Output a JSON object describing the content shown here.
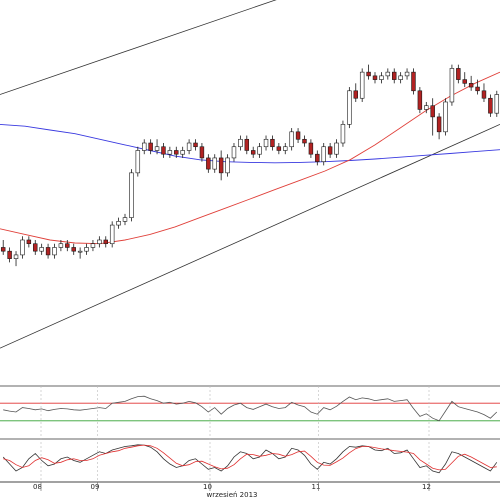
{
  "chart_data": {
    "type": "candlestick",
    "x_axis": {
      "title": "wrzesień 2013",
      "day_labels": [
        "08",
        "09",
        "10",
        "11",
        "12"
      ]
    },
    "colors": {
      "up": "#ffffff",
      "down": "#b22222",
      "wick": "#1a1a1a",
      "ma_fast": "#e0403a",
      "ma_slow": "#3a3ae0",
      "channel": "#333333",
      "rsi_line": "#555555",
      "rsi_upper": "#e03030",
      "rsi_lower": "#30a030",
      "stoch_k": "#333333",
      "stoch_d": "#e03030"
    },
    "price": {
      "ylim": [
        0,
        100
      ],
      "candles": [
        [
          35,
          37,
          33,
          34
        ],
        [
          34,
          35,
          31,
          32
        ],
        [
          32,
          34,
          30,
          33
        ],
        [
          33,
          38,
          32,
          37
        ],
        [
          37,
          38,
          35,
          36
        ],
        [
          36,
          37,
          33,
          34
        ],
        [
          34,
          36,
          33,
          35
        ],
        [
          35,
          36,
          32,
          33
        ],
        [
          33,
          36,
          32,
          35
        ],
        [
          35,
          37,
          34,
          36
        ],
        [
          36,
          37,
          34,
          35
        ],
        [
          35,
          36,
          33,
          34
        ],
        [
          34,
          35,
          32,
          34
        ],
        [
          34,
          36,
          33,
          35
        ],
        [
          35,
          37,
          34,
          36
        ],
        [
          36,
          38,
          35,
          37
        ],
        [
          37,
          38,
          35,
          36
        ],
        [
          36,
          42,
          35,
          41
        ],
        [
          41,
          43,
          40,
          42
        ],
        [
          42,
          44,
          41,
          43
        ],
        [
          43,
          56,
          42,
          55
        ],
        [
          55,
          62,
          54,
          61
        ],
        [
          61,
          64,
          60,
          63
        ],
        [
          63,
          64,
          60,
          61
        ],
        [
          61,
          64,
          60,
          62
        ],
        [
          62,
          63,
          59,
          60
        ],
        [
          60,
          62,
          59,
          61
        ],
        [
          61,
          62,
          59,
          60
        ],
        [
          60,
          62,
          59,
          61
        ],
        [
          61,
          64,
          60,
          63
        ],
        [
          63,
          64,
          61,
          62
        ],
        [
          62,
          63,
          58,
          59
        ],
        [
          59,
          60,
          55,
          56
        ],
        [
          56,
          60,
          55,
          59
        ],
        [
          59,
          61,
          53,
          55
        ],
        [
          55,
          60,
          54,
          59
        ],
        [
          59,
          63,
          58,
          62
        ],
        [
          62,
          65,
          61,
          64
        ],
        [
          64,
          65,
          60,
          61
        ],
        [
          61,
          62,
          59,
          60
        ],
        [
          60,
          63,
          59,
          62
        ],
        [
          62,
          65,
          61,
          64
        ],
        [
          64,
          65,
          61,
          62
        ],
        [
          62,
          63,
          60,
          61
        ],
        [
          61,
          63,
          60,
          62
        ],
        [
          62,
          67,
          61,
          66
        ],
        [
          66,
          67,
          63,
          64
        ],
        [
          64,
          65,
          62,
          63
        ],
        [
          63,
          64,
          59,
          60
        ],
        [
          60,
          61,
          57,
          58
        ],
        [
          58,
          63,
          57,
          62
        ],
        [
          62,
          63,
          59,
          60
        ],
        [
          60,
          64,
          59,
          63
        ],
        [
          63,
          69,
          62,
          68
        ],
        [
          68,
          78,
          67,
          77
        ],
        [
          77,
          79,
          74,
          75
        ],
        [
          75,
          83,
          74,
          82
        ],
        [
          82,
          84,
          80,
          81
        ],
        [
          81,
          82,
          79,
          80
        ],
        [
          80,
          82,
          79,
          81
        ],
        [
          81,
          83,
          80,
          82
        ],
        [
          82,
          83,
          79,
          80
        ],
        [
          80,
          82,
          79,
          81
        ],
        [
          81,
          83,
          80,
          82
        ],
        [
          82,
          83,
          76,
          77
        ],
        [
          77,
          78,
          71,
          72
        ],
        [
          72,
          74,
          71,
          73
        ],
        [
          73,
          75,
          65,
          70
        ],
        [
          70,
          71,
          64,
          66
        ],
        [
          66,
          75,
          65,
          74
        ],
        [
          74,
          84,
          73,
          83
        ],
        [
          83,
          84,
          79,
          80
        ],
        [
          80,
          82,
          78,
          79
        ],
        [
          79,
          81,
          77,
          78
        ],
        [
          78,
          80,
          76,
          77
        ],
        [
          77,
          79,
          74,
          75
        ],
        [
          75,
          76,
          70,
          71
        ],
        [
          71,
          77,
          70,
          76
        ]
      ],
      "ma_slow": [
        [
          0,
          68
        ],
        [
          0.05,
          67.5
        ],
        [
          0.1,
          66.5
        ],
        [
          0.15,
          65.5
        ],
        [
          0.2,
          64
        ],
        [
          0.25,
          62.5
        ],
        [
          0.3,
          61
        ],
        [
          0.35,
          59.5
        ],
        [
          0.4,
          58.5
        ],
        [
          0.45,
          58
        ],
        [
          0.5,
          57.8
        ],
        [
          0.55,
          57.7
        ],
        [
          0.6,
          57.8
        ],
        [
          0.65,
          58
        ],
        [
          0.7,
          58.3
        ],
        [
          0.75,
          58.7
        ],
        [
          0.8,
          59.2
        ],
        [
          0.85,
          59.7
        ],
        [
          0.9,
          60.2
        ],
        [
          0.95,
          60.7
        ],
        [
          1,
          61.2
        ]
      ],
      "ma_fast": [
        [
          0,
          40
        ],
        [
          0.05,
          38.5
        ],
        [
          0.1,
          37
        ],
        [
          0.15,
          36.2
        ],
        [
          0.2,
          36
        ],
        [
          0.25,
          37
        ],
        [
          0.3,
          38.5
        ],
        [
          0.35,
          40.5
        ],
        [
          0.4,
          43
        ],
        [
          0.45,
          45.5
        ],
        [
          0.5,
          48
        ],
        [
          0.55,
          50.5
        ],
        [
          0.6,
          53
        ],
        [
          0.65,
          55.5
        ],
        [
          0.7,
          58.5
        ],
        [
          0.75,
          62.5
        ],
        [
          0.8,
          67
        ],
        [
          0.85,
          71.5
        ],
        [
          0.9,
          75.5
        ],
        [
          0.95,
          79
        ],
        [
          1,
          82
        ]
      ],
      "channel_upper": [
        [
          0,
          76
        ],
        [
          1,
          122
        ]
      ],
      "channel_lower": [
        [
          0,
          8
        ],
        [
          1,
          68
        ]
      ]
    },
    "rsi": {
      "ylim": [
        0,
        100
      ],
      "upper_level": 70,
      "lower_level": 30,
      "values": [
        55,
        52,
        50,
        60,
        58,
        55,
        57,
        53,
        56,
        58,
        57,
        55,
        54,
        56,
        58,
        60,
        58,
        70,
        72,
        74,
        80,
        85,
        86,
        80,
        76,
        70,
        72,
        68,
        70,
        74,
        71,
        62,
        50,
        60,
        45,
        58,
        66,
        70,
        60,
        56,
        62,
        68,
        62,
        58,
        60,
        72,
        66,
        62,
        50,
        45,
        60,
        55,
        63,
        74,
        84,
        78,
        82,
        80,
        76,
        78,
        80,
        74,
        76,
        78,
        58,
        40,
        46,
        36,
        30,
        52,
        74,
        62,
        58,
        54,
        50,
        44,
        36,
        50
      ]
    },
    "stoch": {
      "ylim": [
        0,
        100
      ],
      "k": [
        60,
        40,
        20,
        30,
        55,
        70,
        50,
        35,
        40,
        55,
        60,
        50,
        45,
        55,
        65,
        75,
        70,
        80,
        85,
        90,
        92,
        95,
        94,
        88,
        75,
        55,
        40,
        30,
        35,
        50,
        55,
        40,
        25,
        30,
        20,
        35,
        60,
        75,
        70,
        55,
        60,
        80,
        70,
        55,
        60,
        85,
        80,
        65,
        40,
        25,
        45,
        40,
        55,
        75,
        90,
        88,
        92,
        90,
        80,
        78,
        85,
        70,
        72,
        80,
        55,
        30,
        35,
        20,
        15,
        40,
        75,
        70,
        60,
        50,
        40,
        30,
        20,
        45
      ],
      "d": [
        55,
        50,
        38,
        30,
        35,
        50,
        58,
        52,
        42,
        45,
        52,
        55,
        50,
        50,
        55,
        65,
        70,
        75,
        78,
        85,
        88,
        92,
        94,
        92,
        85,
        72,
        57,
        42,
        35,
        38,
        47,
        48,
        40,
        32,
        26,
        28,
        38,
        55,
        68,
        67,
        62,
        65,
        70,
        68,
        62,
        67,
        75,
        77,
        62,
        45,
        37,
        36,
        46,
        57,
        72,
        84,
        90,
        90,
        87,
        83,
        81,
        78,
        76,
        74,
        70,
        52,
        40,
        28,
        23,
        25,
        43,
        62,
        68,
        60,
        50,
        40,
        30,
        32
      ]
    }
  }
}
